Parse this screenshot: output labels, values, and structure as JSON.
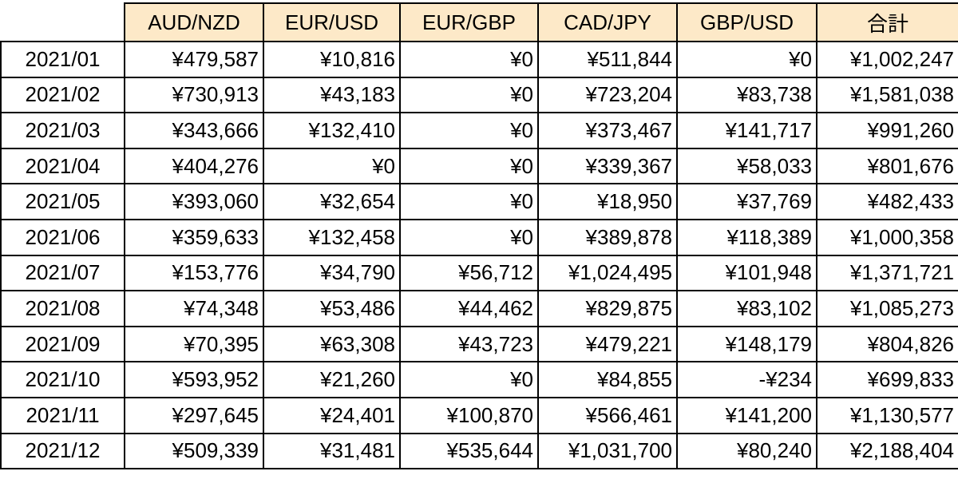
{
  "table": {
    "header": [
      "",
      "AUD/NZD",
      "EUR/USD",
      "EUR/GBP",
      "CAD/JPY",
      "GBP/USD",
      "合計"
    ],
    "rows": [
      [
        "2021/01",
        "¥479,587",
        "¥10,816",
        "¥0",
        "¥511,844",
        "¥0",
        "¥1,002,247"
      ],
      [
        "2021/02",
        "¥730,913",
        "¥43,183",
        "¥0",
        "¥723,204",
        "¥83,738",
        "¥1,581,038"
      ],
      [
        "2021/03",
        "¥343,666",
        "¥132,410",
        "¥0",
        "¥373,467",
        "¥141,717",
        "¥991,260"
      ],
      [
        "2021/04",
        "¥404,276",
        "¥0",
        "¥0",
        "¥339,367",
        "¥58,033",
        "¥801,676"
      ],
      [
        "2021/05",
        "¥393,060",
        "¥32,654",
        "¥0",
        "¥18,950",
        "¥37,769",
        "¥482,433"
      ],
      [
        "2021/06",
        "¥359,633",
        "¥132,458",
        "¥0",
        "¥389,878",
        "¥118,389",
        "¥1,000,358"
      ],
      [
        "2021/07",
        "¥153,776",
        "¥34,790",
        "¥56,712",
        "¥1,024,495",
        "¥101,948",
        "¥1,371,721"
      ],
      [
        "2021/08",
        "¥74,348",
        "¥53,486",
        "¥44,462",
        "¥829,875",
        "¥83,102",
        "¥1,085,273"
      ],
      [
        "2021/09",
        "¥70,395",
        "¥63,308",
        "¥43,723",
        "¥479,221",
        "¥148,179",
        "¥804,826"
      ],
      [
        "2021/10",
        "¥593,952",
        "¥21,260",
        "¥0",
        "¥84,855",
        "-¥234",
        "¥699,833"
      ],
      [
        "2021/11",
        "¥297,645",
        "¥24,401",
        "¥100,870",
        "¥566,461",
        "¥141,200",
        "¥1,130,577"
      ],
      [
        "2021/12",
        "¥509,339",
        "¥31,481",
        "¥535,644",
        "¥1,031,700",
        "¥80,240",
        "¥2,188,404"
      ]
    ]
  }
}
